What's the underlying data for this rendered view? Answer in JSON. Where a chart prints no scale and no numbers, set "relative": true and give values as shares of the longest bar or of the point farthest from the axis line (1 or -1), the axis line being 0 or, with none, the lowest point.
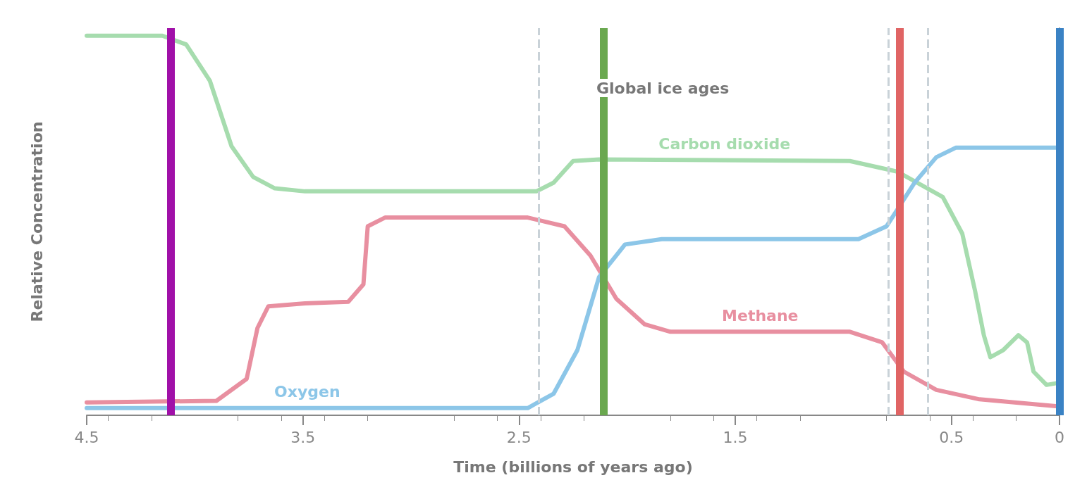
{
  "chart_data": {
    "type": "line",
    "relative": true,
    "xlabel": "Time (billions of years ago)",
    "ylabel": "Relative Concentration",
    "xlim": [
      4.5,
      0
    ],
    "xticks": [
      4.5,
      3.5,
      2.5,
      1.5,
      0.5,
      0
    ],
    "tick_labels": "x",
    "grid": false,
    "legend": false,
    "marker": "none",
    "line_style": "solid",
    "series": [
      {
        "name": "Carbon dioxide",
        "color": "#a6dcae",
        "x": [
          4.5,
          4.15,
          4.04,
          3.93,
          3.83,
          3.73,
          3.63,
          3.49,
          2.42,
          2.34,
          2.25,
          2.13,
          0.97,
          0.75,
          0.54,
          0.45,
          0.39,
          0.35,
          0.32,
          0.26,
          0.19,
          0.15,
          0.12,
          0.06,
          0
        ],
        "values": [
          1.0,
          1.0,
          0.977,
          0.881,
          0.709,
          0.628,
          0.598,
          0.59,
          0.59,
          0.613,
          0.67,
          0.674,
          0.67,
          0.642,
          0.575,
          0.479,
          0.326,
          0.211,
          0.153,
          0.172,
          0.211,
          0.192,
          0.115,
          0.08,
          0.086
        ]
      },
      {
        "name": "Methane",
        "color": "#e88fa0",
        "x": [
          4.5,
          3.9,
          3.76,
          3.71,
          3.66,
          3.49,
          3.29,
          3.22,
          3.2,
          3.12,
          2.46,
          2.29,
          2.17,
          2.05,
          1.92,
          1.8,
          0.97,
          0.82,
          0.72,
          0.57,
          0.37,
          0
        ],
        "values": [
          0.034,
          0.038,
          0.096,
          0.23,
          0.287,
          0.295,
          0.299,
          0.345,
          0.498,
          0.521,
          0.521,
          0.498,
          0.421,
          0.307,
          0.24,
          0.22,
          0.22,
          0.192,
          0.115,
          0.067,
          0.042,
          0.023
        ]
      },
      {
        "name": "Oxygen",
        "color": "#8cc6e8",
        "x": [
          4.5,
          2.46,
          2.34,
          2.23,
          2.13,
          2.01,
          1.84,
          0.93,
          0.8,
          0.67,
          0.57,
          0.48,
          0
        ],
        "values": [
          0.019,
          0.019,
          0.057,
          0.172,
          0.364,
          0.45,
          0.464,
          0.464,
          0.498,
          0.613,
          0.68,
          0.705,
          0.705
        ]
      }
    ],
    "ref_lines": [
      {
        "axis": "x",
        "value": 2.41,
        "color": "#c9d2d8",
        "line_style": "dashed"
      },
      {
        "axis": "x",
        "value": 0.79,
        "color": "#c9d2d8",
        "line_style": "dashed"
      },
      {
        "axis": "x",
        "value": 0.61,
        "color": "#c9d2d8",
        "line_style": "dashed"
      },
      {
        "axis": "x",
        "value": 4.11,
        "color": "#a010a8",
        "line_style": "solid"
      },
      {
        "axis": "x",
        "value": 2.11,
        "color": "#6aa84f",
        "line_style": "solid"
      },
      {
        "axis": "x",
        "value": 0.74,
        "color": "#e06464",
        "line_style": "solid"
      },
      {
        "axis": "x",
        "value": 0,
        "color": "#3a82c4",
        "line_style": "solid"
      }
    ],
    "annotations": [
      "Global ice ages"
    ]
  }
}
